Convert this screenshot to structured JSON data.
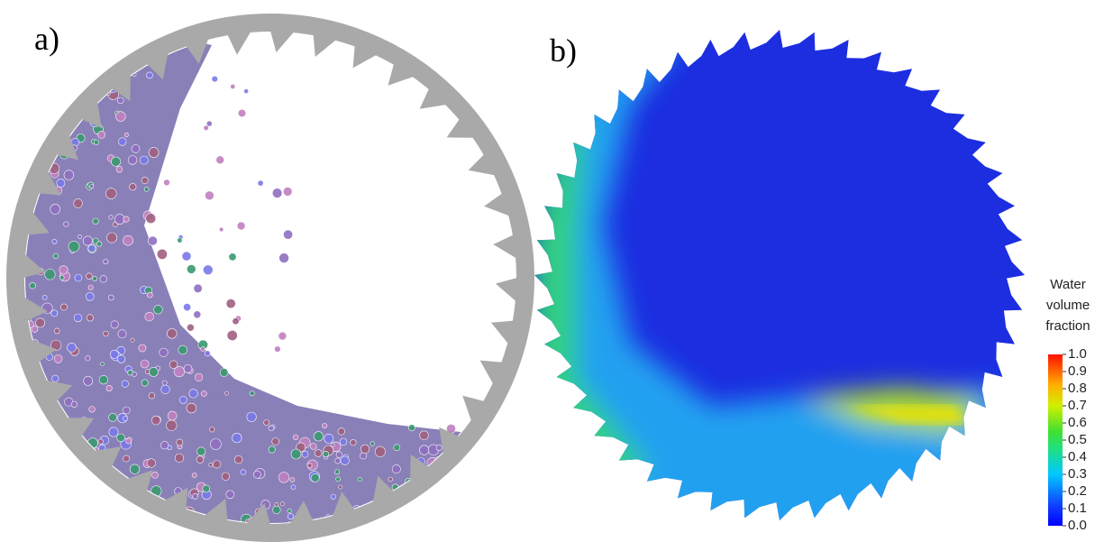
{
  "panels": [
    {
      "label": "a)"
    },
    {
      "label": "b)"
    }
  ],
  "colorbar": {
    "title_lines": [
      "Water",
      "volume",
      "fraction"
    ],
    "range": [
      0,
      1
    ],
    "ticks": [
      {
        "value": 0,
        "label": "0.0"
      },
      {
        "value": 0.1,
        "label": "0.1"
      },
      {
        "value": 0.2,
        "label": "0.2"
      },
      {
        "value": 0.3,
        "label": "0.3"
      },
      {
        "value": 0.4,
        "label": "0.4"
      },
      {
        "value": 0.5,
        "label": "0.5"
      },
      {
        "value": 0.6,
        "label": "0.6"
      },
      {
        "value": 0.7,
        "label": "0.7"
      },
      {
        "value": 0.8,
        "label": "0.8"
      },
      {
        "value": 0.9,
        "label": "0.9"
      },
      {
        "value": 1,
        "label": "1.0"
      }
    ]
  }
}
